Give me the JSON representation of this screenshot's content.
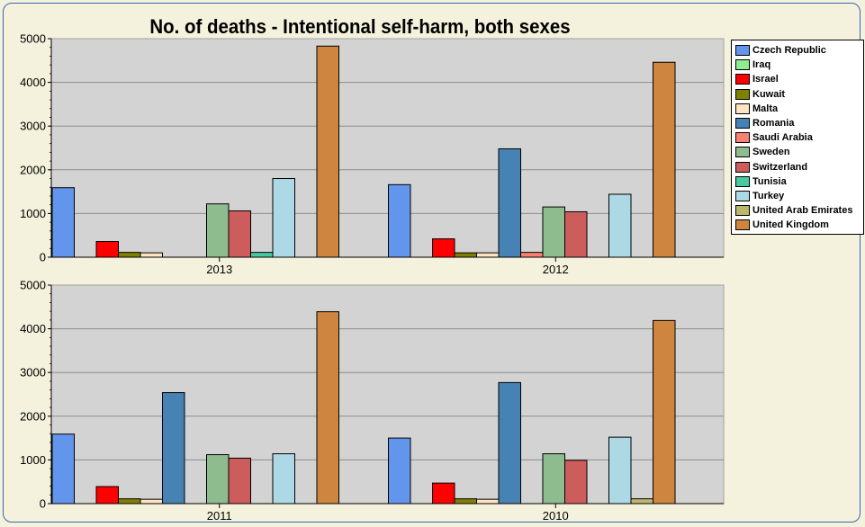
{
  "chart_data": {
    "type": "bar",
    "title": "No. of deaths - Intentional self-harm, both sexes",
    "legend_position": "right",
    "grid": true,
    "ylim": [
      0,
      5000
    ],
    "yticks": [
      "0",
      "1000",
      "2000",
      "3000",
      "4000",
      "5000"
    ],
    "panels": [
      {
        "categories": [
          "2013",
          "2012"
        ],
        "series": [
          {
            "name": "Czech Republic",
            "color": "#6495ed",
            "values": [
              1590,
              1660
            ]
          },
          {
            "name": "Iraq",
            "color": "#90ee90",
            "values": [
              0,
              0
            ]
          },
          {
            "name": "Israel",
            "color": "#ff0000",
            "values": [
              360,
              420
            ]
          },
          {
            "name": "Kuwait",
            "color": "#808000",
            "values": [
              110,
              100
            ]
          },
          {
            "name": "Malta",
            "color": "#ffe4c4",
            "values": [
              100,
              100
            ]
          },
          {
            "name": "Romania",
            "color": "#4682b4",
            "values": [
              0,
              2480
            ]
          },
          {
            "name": "Saudi Arabia",
            "color": "#fa8072",
            "values": [
              0,
              110
            ]
          },
          {
            "name": "Sweden",
            "color": "#8fbc8f",
            "values": [
              1220,
              1150
            ]
          },
          {
            "name": "Switzerland",
            "color": "#cd5c5c",
            "values": [
              1060,
              1040
            ]
          },
          {
            "name": "Tunisia",
            "color": "#48c9a0",
            "values": [
              110,
              0
            ]
          },
          {
            "name": "Turkey",
            "color": "#add8e6",
            "values": [
              1800,
              1440
            ]
          },
          {
            "name": "United Arab Emirates",
            "color": "#bdb76b",
            "values": [
              0,
              0
            ]
          },
          {
            "name": "United Kingdom",
            "color": "#cd853f",
            "values": [
              4830,
              4460
            ]
          }
        ]
      },
      {
        "categories": [
          "2011",
          "2010"
        ],
        "series": [
          {
            "name": "Czech Republic",
            "color": "#6495ed",
            "values": [
              1590,
              1500
            ]
          },
          {
            "name": "Iraq",
            "color": "#90ee90",
            "values": [
              0,
              0
            ]
          },
          {
            "name": "Israel",
            "color": "#ff0000",
            "values": [
              390,
              470
            ]
          },
          {
            "name": "Kuwait",
            "color": "#808000",
            "values": [
              110,
              110
            ]
          },
          {
            "name": "Malta",
            "color": "#ffe4c4",
            "values": [
              100,
              100
            ]
          },
          {
            "name": "Romania",
            "color": "#4682b4",
            "values": [
              2540,
              2770
            ]
          },
          {
            "name": "Saudi Arabia",
            "color": "#fa8072",
            "values": [
              0,
              0
            ]
          },
          {
            "name": "Sweden",
            "color": "#8fbc8f",
            "values": [
              1120,
              1140
            ]
          },
          {
            "name": "Switzerland",
            "color": "#cd5c5c",
            "values": [
              1040,
              990
            ]
          },
          {
            "name": "Tunisia",
            "color": "#48c9a0",
            "values": [
              0,
              0
            ]
          },
          {
            "name": "Turkey",
            "color": "#add8e6",
            "values": [
              1140,
              1520
            ]
          },
          {
            "name": "United Arab Emirates",
            "color": "#bdb76b",
            "values": [
              0,
              110
            ]
          },
          {
            "name": "United Kingdom",
            "color": "#cd853f",
            "values": [
              4390,
              4190
            ]
          }
        ]
      }
    ]
  }
}
